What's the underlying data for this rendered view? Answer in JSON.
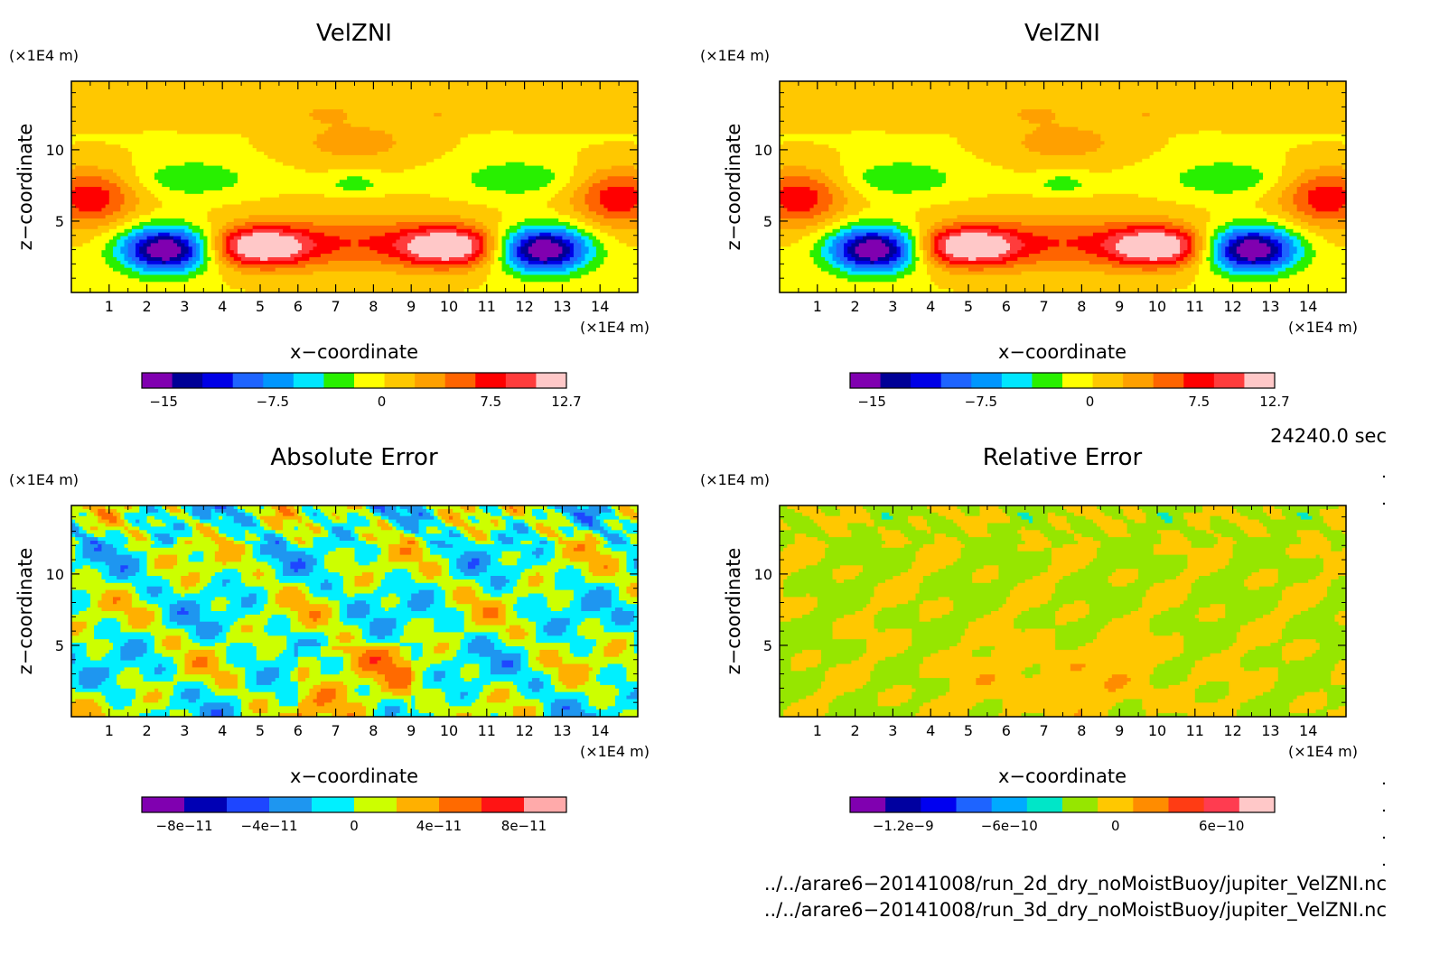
{
  "chart_data": [
    {
      "type": "heatmap",
      "title": "VelZNI",
      "xlabel": "x−coordinate",
      "ylabel": "z−coordinate",
      "x_unit": "(×1E4 m)",
      "y_unit": "(×1E4 m)",
      "x_ticks": [
        "1",
        "2",
        "3",
        "4",
        "5",
        "6",
        "7",
        "8",
        "9",
        "10",
        "11",
        "12",
        "13",
        "14"
      ],
      "y_ticks": [
        "5",
        "10"
      ],
      "xlim": [
        0,
        15
      ],
      "ylim": [
        0,
        14.8
      ],
      "pattern": "velzni",
      "colorbar": {
        "colors": [
          "#8000b0",
          "#000096",
          "#0000e6",
          "#1e64ff",
          "#0096ff",
          "#00e6ff",
          "#28f000",
          "#ffff00",
          "#ffc800",
          "#ffa000",
          "#ff6400",
          "#ff0000",
          "#ff3c3c",
          "#ffc8c8"
        ],
        "labels": [
          "−15",
          "−7.5",
          "0",
          "7.5",
          "12.7"
        ],
        "vmin": -16.5,
        "vmax": 12.7,
        "label_values": [
          -15,
          -7.5,
          0,
          7.5,
          12.7
        ]
      }
    },
    {
      "type": "heatmap",
      "title": "VelZNI",
      "xlabel": "x−coordinate",
      "ylabel": "z−coordinate",
      "x_unit": "(×1E4 m)",
      "y_unit": "(×1E4 m)",
      "x_ticks": [
        "1",
        "2",
        "3",
        "4",
        "5",
        "6",
        "7",
        "8",
        "9",
        "10",
        "11",
        "12",
        "13",
        "14"
      ],
      "y_ticks": [
        "5",
        "10"
      ],
      "xlim": [
        0,
        15
      ],
      "ylim": [
        0,
        14.8
      ],
      "pattern": "velzni",
      "colorbar": {
        "colors": [
          "#8000b0",
          "#000096",
          "#0000e6",
          "#1e64ff",
          "#0096ff",
          "#00e6ff",
          "#28f000",
          "#ffff00",
          "#ffc800",
          "#ffa000",
          "#ff6400",
          "#ff0000",
          "#ff3c3c",
          "#ffc8c8"
        ],
        "labels": [
          "−15",
          "−7.5",
          "0",
          "7.5",
          "12.7"
        ],
        "vmin": -16.5,
        "vmax": 12.7,
        "label_values": [
          -15,
          -7.5,
          0,
          7.5,
          12.7
        ]
      }
    },
    {
      "type": "heatmap",
      "title": "Absolute Error",
      "xlabel": "x−coordinate",
      "ylabel": "z−coordinate",
      "x_unit": "(×1E4 m)",
      "y_unit": "(×1E4 m)",
      "x_ticks": [
        "1",
        "2",
        "3",
        "4",
        "5",
        "6",
        "7",
        "8",
        "9",
        "10",
        "11",
        "12",
        "13",
        "14"
      ],
      "y_ticks": [
        "5",
        "10"
      ],
      "xlim": [
        0,
        15
      ],
      "ylim": [
        0,
        14.8
      ],
      "pattern": "abs",
      "colorbar": {
        "colors": [
          "#8000b0",
          "#0000b4",
          "#1e46ff",
          "#1e96f0",
          "#00f0ff",
          "#ccff00",
          "#ffb000",
          "#ff6a00",
          "#ff1414",
          "#ffaaaa"
        ],
        "labels": [
          "−8e−11",
          "−4e−11",
          "0",
          "4e−11",
          "8e−11"
        ],
        "vmin": -1e-10,
        "vmax": 1e-10,
        "label_values": [
          -8e-11,
          -4e-11,
          0,
          4e-11,
          8e-11
        ]
      }
    },
    {
      "type": "heatmap",
      "title": "Relative Error",
      "xlabel": "x−coordinate",
      "ylabel": "z−coordinate",
      "x_unit": "(×1E4 m)",
      "y_unit": "(×1E4 m)",
      "x_ticks": [
        "1",
        "2",
        "3",
        "4",
        "5",
        "6",
        "7",
        "8",
        "9",
        "10",
        "11",
        "12",
        "13",
        "14"
      ],
      "y_ticks": [
        "5",
        "10"
      ],
      "xlim": [
        0,
        15
      ],
      "ylim": [
        0,
        14.8
      ],
      "pattern": "rel",
      "colorbar": {
        "colors": [
          "#8000b0",
          "#0000a0",
          "#0000f0",
          "#1e64ff",
          "#00aaff",
          "#00e6c8",
          "#96e600",
          "#ffc800",
          "#ff8c00",
          "#ff3c14",
          "#ff3c50",
          "#ffc8c8"
        ],
        "labels": [
          "−1.2e−9",
          "−6e−10",
          "0",
          "6e−10"
        ],
        "vmin": -1.5e-09,
        "vmax": 9e-10,
        "label_values": [
          -1.2e-09,
          -6e-10,
          0,
          6e-10
        ]
      }
    }
  ],
  "info": {
    "time": "24240.0 sec",
    "file1": "../../arare6−20141008/run_2d_dry_noMoistBuoy/jupiter_VelZNI.nc",
    "file2": "../../arare6−20141008/run_3d_dry_noMoistBuoy/jupiter_VelZNI.nc"
  }
}
